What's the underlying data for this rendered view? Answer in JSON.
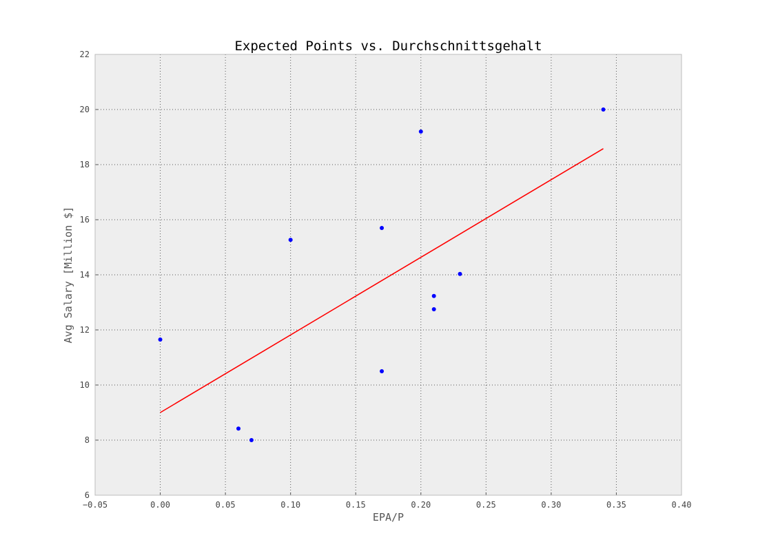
{
  "chart_data": {
    "type": "scatter",
    "title": "Expected Points vs. Durchschnittsgehalt",
    "xlabel": "EPA/P",
    "ylabel": "Avg Salary [Million $]",
    "xlim": [
      -0.05,
      0.4
    ],
    "ylim": [
      6,
      22
    ],
    "xticks": [
      "-0.05",
      "0.00",
      "0.05",
      "0.10",
      "0.15",
      "0.20",
      "0.25",
      "0.30",
      "0.35",
      "0.40"
    ],
    "yticks": [
      "6",
      "8",
      "10",
      "12",
      "14",
      "16",
      "18",
      "20",
      "22"
    ],
    "grid": true,
    "legend": null,
    "series": [
      {
        "kind": "points",
        "color": "#0000ff",
        "points": [
          {
            "x": 0.0,
            "y": 11.65
          },
          {
            "x": 0.06,
            "y": 8.42
          },
          {
            "x": 0.07,
            "y": 8.0
          },
          {
            "x": 0.1,
            "y": 15.27
          },
          {
            "x": 0.17,
            "y": 15.7
          },
          {
            "x": 0.17,
            "y": 10.5
          },
          {
            "x": 0.2,
            "y": 19.2
          },
          {
            "x": 0.21,
            "y": 13.23
          },
          {
            "x": 0.21,
            "y": 12.75
          },
          {
            "x": 0.23,
            "y": 14.03
          },
          {
            "x": 0.34,
            "y": 20.0
          }
        ]
      },
      {
        "kind": "fit-line",
        "color": "#ff0000",
        "points": [
          {
            "x": 0.0,
            "y": 9.0
          },
          {
            "x": 0.34,
            "y": 18.58
          }
        ]
      }
    ],
    "colors": {
      "plot_background": "#eeeeee",
      "frame": "#bcbcbc",
      "grid": "#555555"
    }
  }
}
